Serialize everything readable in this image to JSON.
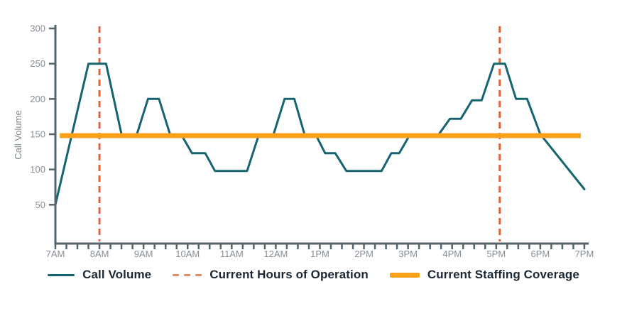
{
  "chart_data": {
    "type": "line",
    "ylabel": "Call Volume",
    "xlabel": "",
    "ylim": [
      0,
      300
    ],
    "yticks": [
      50,
      100,
      150,
      200,
      250,
      300
    ],
    "x_labels": [
      "7AM",
      "8AM",
      "9AM",
      "10AM",
      "11AM",
      "12AM",
      "1PM",
      "2PM",
      "3PM",
      "4PM",
      "5PM",
      "6PM",
      "7PM"
    ],
    "x_range_hours": [
      7,
      19
    ],
    "x_minor_tick_step_hours": 0.25,
    "grid": false,
    "legend_position": "bottom",
    "series": [
      {
        "name": "Call Volume",
        "type": "line",
        "points_hour_value": [
          [
            7.0,
            50
          ],
          [
            7.75,
            250
          ],
          [
            8.15,
            250
          ],
          [
            8.5,
            150
          ],
          [
            8.85,
            150
          ],
          [
            9.1,
            200
          ],
          [
            9.35,
            200
          ],
          [
            9.6,
            150
          ],
          [
            9.85,
            150
          ],
          [
            10.1,
            123
          ],
          [
            10.4,
            123
          ],
          [
            10.62,
            98
          ],
          [
            11.35,
            98
          ],
          [
            11.62,
            150
          ],
          [
            11.95,
            150
          ],
          [
            12.2,
            200
          ],
          [
            12.42,
            200
          ],
          [
            12.65,
            150
          ],
          [
            12.9,
            150
          ],
          [
            13.12,
            123
          ],
          [
            13.35,
            123
          ],
          [
            13.6,
            98
          ],
          [
            14.4,
            98
          ],
          [
            14.62,
            123
          ],
          [
            14.8,
            123
          ],
          [
            15.05,
            150
          ],
          [
            15.7,
            150
          ],
          [
            15.95,
            172
          ],
          [
            16.2,
            172
          ],
          [
            16.45,
            198
          ],
          [
            16.67,
            198
          ],
          [
            16.95,
            250
          ],
          [
            17.2,
            250
          ],
          [
            17.45,
            200
          ],
          [
            17.7,
            200
          ],
          [
            18.0,
            150
          ],
          [
            19.0,
            72
          ]
        ]
      },
      {
        "name": "Current Hours of Operation",
        "type": "vlines",
        "hours": [
          8.0,
          17.08
        ]
      },
      {
        "name": "Current Staffing Coverage",
        "type": "hline",
        "value": 148,
        "x_start_hour": 7.1,
        "x_end_hour": 18.92
      }
    ]
  },
  "legend": {
    "call_volume": "Call Volume",
    "hours_of_operation": "Current Hours of Operation",
    "staffing_coverage": "Current Staffing Coverage"
  },
  "colors": {
    "call_volume_line": "#16646F",
    "hours_dashed_line": "#E6613C",
    "legend_dash_swatch": "#E2906C",
    "staffing_line": "#F9A11B",
    "axis_line": "#54646A",
    "tick_label": "#878E94",
    "axis_title": "#7E8A8E",
    "legend_text": "#1B2733"
  }
}
